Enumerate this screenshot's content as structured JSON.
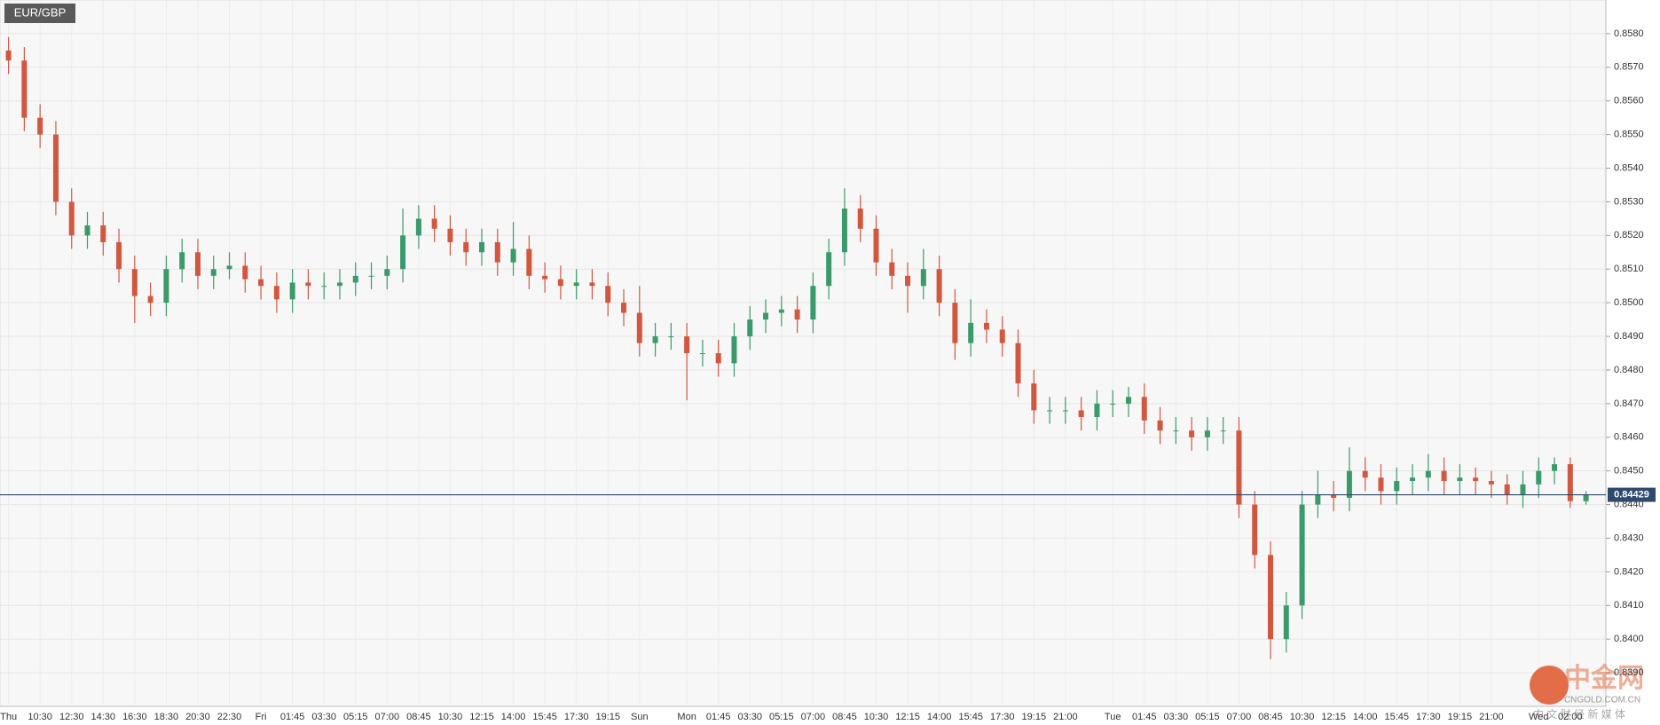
{
  "chart_data": {
    "type": "candlestick",
    "title": "EUR/GBP",
    "categories": [
      "Thu",
      null,
      "10:30",
      null,
      "12:30",
      null,
      "14:30",
      null,
      "16:30",
      null,
      "18:30",
      null,
      "20:30",
      null,
      "22:30",
      null,
      "Fri",
      null,
      "01:45",
      null,
      "03:30",
      null,
      "05:15",
      null,
      "07:00",
      null,
      "08:45",
      null,
      "10:30",
      null,
      "12:15",
      null,
      "14:00",
      null,
      "15:45",
      null,
      "17:30",
      null,
      "19:15",
      null,
      "Sun",
      null,
      null,
      "Mon",
      null,
      "01:45",
      null,
      "03:30",
      null,
      "05:15",
      null,
      "07:00",
      null,
      "08:45",
      null,
      "10:30",
      null,
      "12:15",
      null,
      "14:00",
      null,
      "15:45",
      null,
      "17:30",
      null,
      "19:15",
      null,
      "21:00",
      null,
      null,
      "Tue",
      null,
      "01:45",
      null,
      "03:30",
      null,
      "05:15",
      null,
      "07:00",
      null,
      "08:45",
      null,
      "10:30",
      null,
      "12:15",
      null,
      "14:00",
      null,
      "15:45",
      null,
      "17:30",
      null,
      "19:15",
      null,
      "21:00",
      null,
      null,
      "Wed",
      null,
      "02:00",
      null
    ],
    "open": [
      0.8575,
      0.8572,
      0.8555,
      0.855,
      0.853,
      0.852,
      0.8523,
      0.8518,
      0.851,
      0.8502,
      0.85,
      0.851,
      0.8515,
      0.8508,
      0.851,
      0.8511,
      0.8507,
      0.8505,
      0.8501,
      0.8506,
      0.8505,
      0.8505,
      0.8506,
      0.8508,
      0.8508,
      0.851,
      0.852,
      0.8525,
      0.8522,
      0.8518,
      0.8515,
      0.8518,
      0.8512,
      0.8516,
      0.8508,
      0.8507,
      0.8505,
      0.8506,
      0.8505,
      0.85,
      0.8497,
      0.8488,
      0.849,
      0.849,
      0.8485,
      0.8485,
      0.8482,
      0.849,
      0.8495,
      0.8497,
      0.8498,
      0.8495,
      0.8505,
      0.8515,
      0.8528,
      0.8522,
      0.8512,
      0.8508,
      0.8505,
      0.851,
      0.85,
      0.8488,
      0.8494,
      0.8492,
      0.8488,
      0.8476,
      0.8468,
      0.8468,
      0.8468,
      0.8466,
      0.847,
      0.847,
      0.8472,
      0.8465,
      0.8462,
      0.8462,
      0.846,
      0.8462,
      0.8462,
      0.844,
      0.8425,
      0.84,
      0.841,
      0.844,
      0.8443,
      0.8442,
      0.845,
      0.8448,
      0.8444,
      0.8447,
      0.8448,
      0.845,
      0.8447,
      0.8448,
      0.8447,
      0.8446,
      0.8443,
      0.8446,
      0.845,
      0.8452,
      0.8441
    ],
    "high": [
      0.8579,
      0.8576,
      0.8559,
      0.8554,
      0.8534,
      0.8527,
      0.8527,
      0.8522,
      0.8514,
      0.8506,
      0.8514,
      0.8519,
      0.8519,
      0.8514,
      0.8515,
      0.8515,
      0.8511,
      0.8509,
      0.851,
      0.851,
      0.8509,
      0.851,
      0.8512,
      0.8512,
      0.8514,
      0.8528,
      0.8529,
      0.8529,
      0.8526,
      0.8522,
      0.8522,
      0.8522,
      0.8524,
      0.852,
      0.8512,
      0.8511,
      0.851,
      0.851,
      0.8509,
      0.8504,
      0.8505,
      0.8494,
      0.8494,
      0.8494,
      0.8489,
      0.8489,
      0.8494,
      0.8499,
      0.8501,
      0.8502,
      0.8502,
      0.8509,
      0.8519,
      0.8534,
      0.8532,
      0.8526,
      0.8516,
      0.8512,
      0.8516,
      0.8514,
      0.8504,
      0.8501,
      0.8498,
      0.8496,
      0.8492,
      0.848,
      0.8472,
      0.8472,
      0.8472,
      0.8474,
      0.8474,
      0.8475,
      0.8476,
      0.8469,
      0.8466,
      0.8466,
      0.8466,
      0.8466,
      0.8466,
      0.8444,
      0.8429,
      0.8414,
      0.8444,
      0.845,
      0.8447,
      0.8457,
      0.8454,
      0.8452,
      0.8451,
      0.8452,
      0.8455,
      0.8454,
      0.8452,
      0.8451,
      0.845,
      0.8449,
      0.845,
      0.8454,
      0.8454,
      0.8454,
      0.8444
    ],
    "low": [
      0.8568,
      0.8551,
      0.8546,
      0.8526,
      0.8516,
      0.8516,
      0.8514,
      0.8506,
      0.8494,
      0.8496,
      0.8496,
      0.8506,
      0.8504,
      0.8504,
      0.8507,
      0.8503,
      0.8501,
      0.8497,
      0.8497,
      0.8501,
      0.8501,
      0.8501,
      0.8502,
      0.8504,
      0.8504,
      0.8506,
      0.8516,
      0.8518,
      0.8514,
      0.8511,
      0.8511,
      0.8508,
      0.8508,
      0.8504,
      0.8503,
      0.8501,
      0.8501,
      0.8501,
      0.8496,
      0.8493,
      0.8484,
      0.8484,
      0.8486,
      0.8471,
      0.8481,
      0.8478,
      0.8478,
      0.8486,
      0.8491,
      0.8493,
      0.8491,
      0.8491,
      0.8501,
      0.8511,
      0.8518,
      0.8508,
      0.8504,
      0.8497,
      0.8501,
      0.8496,
      0.8483,
      0.8484,
      0.8488,
      0.8484,
      0.8472,
      0.8464,
      0.8464,
      0.8464,
      0.8462,
      0.8462,
      0.8466,
      0.8466,
      0.8461,
      0.8458,
      0.8458,
      0.8456,
      0.8456,
      0.8458,
      0.8436,
      0.8421,
      0.8394,
      0.8396,
      0.8406,
      0.8436,
      0.8438,
      0.8438,
      0.8444,
      0.844,
      0.844,
      0.8443,
      0.8444,
      0.8443,
      0.8443,
      0.8443,
      0.8442,
      0.844,
      0.8439,
      0.8442,
      0.8446,
      0.8439,
      0.844
    ],
    "close": [
      0.8572,
      0.8555,
      0.855,
      0.853,
      0.852,
      0.8523,
      0.8518,
      0.851,
      0.8502,
      0.85,
      0.851,
      0.8515,
      0.8508,
      0.851,
      0.8511,
      0.8507,
      0.8505,
      0.8501,
      0.8506,
      0.8505,
      0.8505,
      0.8506,
      0.8508,
      0.8508,
      0.851,
      0.852,
      0.8525,
      0.8522,
      0.8518,
      0.8515,
      0.8518,
      0.8512,
      0.8516,
      0.8508,
      0.8507,
      0.8505,
      0.8506,
      0.8505,
      0.85,
      0.8497,
      0.8488,
      0.849,
      0.849,
      0.8485,
      0.8485,
      0.8482,
      0.849,
      0.8495,
      0.8497,
      0.8498,
      0.8495,
      0.8505,
      0.8515,
      0.8528,
      0.8522,
      0.8512,
      0.8508,
      0.8505,
      0.851,
      0.85,
      0.8488,
      0.8494,
      0.8492,
      0.8488,
      0.8476,
      0.8468,
      0.8468,
      0.8468,
      0.8466,
      0.847,
      0.847,
      0.8472,
      0.8465,
      0.8462,
      0.8462,
      0.846,
      0.8462,
      0.8462,
      0.844,
      0.8425,
      0.84,
      0.841,
      0.844,
      0.8443,
      0.8442,
      0.845,
      0.8448,
      0.8444,
      0.8447,
      0.8448,
      0.845,
      0.8447,
      0.8448,
      0.8447,
      0.8446,
      0.8443,
      0.8446,
      0.845,
      0.8452,
      0.8441,
      0.84429
    ],
    "up_color": "#3a9a6a",
    "down_color": "#d2573f",
    "price_line": 0.84429,
    "price_line_color": "#2f4a6e",
    "ylim": [
      0.838,
      0.859
    ],
    "yticks": [
      {
        "value": 0.839,
        "label": "0.8390"
      },
      {
        "value": 0.84,
        "label": "0.8400"
      },
      {
        "value": 0.841,
        "label": "0.8410"
      },
      {
        "value": 0.842,
        "label": "0.8420"
      },
      {
        "value": 0.843,
        "label": "0.8430"
      },
      {
        "value": 0.844,
        "label": "0.8440"
      },
      {
        "value": 0.845,
        "label": "0.8450"
      },
      {
        "value": 0.846,
        "label": "0.8460"
      },
      {
        "value": 0.847,
        "label": "0.8470"
      },
      {
        "value": 0.848,
        "label": "0.8480"
      },
      {
        "value": 0.849,
        "label": "0.8490"
      },
      {
        "value": 0.85,
        "label": "0.8500"
      },
      {
        "value": 0.851,
        "label": "0.8510"
      },
      {
        "value": 0.852,
        "label": "0.8520"
      },
      {
        "value": 0.853,
        "label": "0.8530"
      },
      {
        "value": 0.854,
        "label": "0.8540"
      },
      {
        "value": 0.855,
        "label": "0.8550"
      },
      {
        "value": 0.856,
        "label": "0.8560"
      },
      {
        "value": 0.857,
        "label": "0.8570"
      },
      {
        "value": 0.858,
        "label": "0.8580"
      }
    ],
    "grid": true,
    "watermark": {
      "logo": "中金网",
      "domain": "CNGOLD.COM.CN",
      "tagline": "中 文 财 经 新 媒 体"
    }
  }
}
